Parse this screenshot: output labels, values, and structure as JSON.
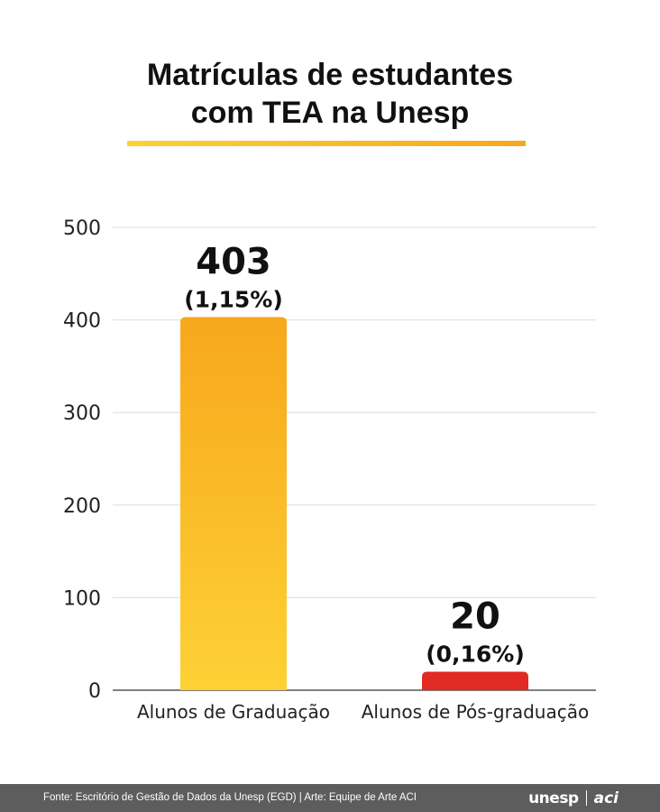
{
  "title_lines": [
    "Matrículas de estudantes",
    "com TEA na Unesp"
  ],
  "chart_data": {
    "type": "bar",
    "title": "Matrículas de estudantes com TEA na Unesp",
    "categories": [
      "Alunos de Graduação",
      "Alunos de Pós-graduação"
    ],
    "values": [
      403,
      20
    ],
    "data_labels": [
      "403",
      "20"
    ],
    "percent_labels": [
      "(1,15%)",
      "(0,16%)"
    ],
    "yticks": [
      0,
      100,
      200,
      300,
      400,
      500
    ],
    "ylim": [
      0,
      500
    ],
    "grid": true,
    "bar_colors": [
      [
        "#fdd135",
        "#f7a71c"
      ],
      [
        "#e02a22",
        "#e02a22"
      ]
    ]
  },
  "footer": {
    "source": "Fonte: Escritório de Gestão de Dados da Unesp (EGD) | Arte: Equipe de Arte ACI",
    "logo_unesp": "unesp",
    "logo_aci": "aci"
  }
}
